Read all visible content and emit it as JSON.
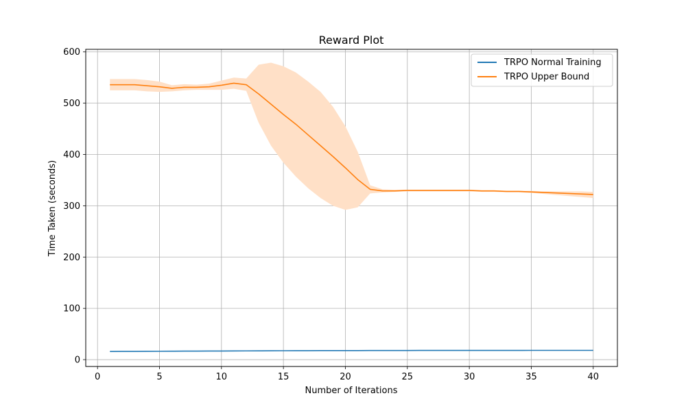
{
  "chart_data": {
    "type": "line",
    "title": "Reward Plot",
    "xlabel": "Number of Iterations",
    "ylabel": "Time Taken (seconds)",
    "xlim": [
      -0.95,
      41.95
    ],
    "ylim": [
      -13.3,
      605
    ],
    "xticks": [
      0,
      5,
      10,
      15,
      20,
      25,
      30,
      35,
      40
    ],
    "yticks": [
      0,
      100,
      200,
      300,
      400,
      500,
      600
    ],
    "grid": true,
    "legend_position": "top-right",
    "x": [
      1,
      2,
      3,
      4,
      5,
      6,
      7,
      8,
      9,
      10,
      11,
      12,
      13,
      14,
      15,
      16,
      17,
      18,
      19,
      20,
      21,
      22,
      23,
      24,
      25,
      26,
      27,
      28,
      29,
      30,
      31,
      32,
      33,
      34,
      35,
      36,
      37,
      38,
      39,
      40
    ],
    "series": [
      {
        "name": "TRPO Normal Training",
        "color": "#1f77b4",
        "values": [
          16.0,
          16.1,
          16.2,
          16.3,
          16.4,
          16.5,
          16.6,
          16.7,
          16.8,
          16.9,
          17.0,
          17.1,
          17.2,
          17.3,
          17.4,
          17.5,
          17.5,
          17.6,
          17.6,
          17.7,
          17.7,
          17.8,
          17.8,
          17.9,
          17.9,
          18.0,
          18.0,
          18.0,
          18.0,
          18.0,
          18.0,
          18.0,
          18.0,
          18.0,
          18.1,
          18.1,
          18.1,
          18.1,
          18.1,
          18.1
        ]
      },
      {
        "name": "TRPO Upper Bound",
        "color": "#ff7f0e",
        "band_color": "#ffe0c7",
        "values": [
          536,
          536,
          536,
          534,
          532,
          529,
          531,
          531,
          532,
          535,
          539,
          536,
          518,
          498,
          478,
          459,
          438,
          417,
          396,
          374,
          351,
          332,
          329,
          329,
          330,
          330,
          330,
          330,
          330,
          330,
          329,
          329,
          328,
          328,
          327,
          326,
          325,
          324,
          323,
          322
        ],
        "upper": [
          547,
          547,
          547,
          545,
          542,
          535,
          537,
          536,
          538,
          544,
          550,
          548,
          575,
          579,
          572,
          560,
          542,
          522,
          493,
          455,
          405,
          340,
          332,
          331,
          331,
          331,
          331,
          331,
          331,
          331,
          330,
          330,
          329,
          329,
          329,
          328,
          328,
          328,
          328,
          327
        ],
        "lower": [
          525,
          525,
          525,
          523,
          522,
          523,
          525,
          526,
          526,
          526,
          528,
          524,
          462,
          417,
          384,
          357,
          334,
          315,
          300,
          292,
          297,
          324,
          326,
          327,
          328,
          328,
          328,
          328,
          328,
          328,
          327,
          327,
          326,
          326,
          325,
          323,
          321,
          319,
          317,
          315
        ]
      }
    ]
  }
}
